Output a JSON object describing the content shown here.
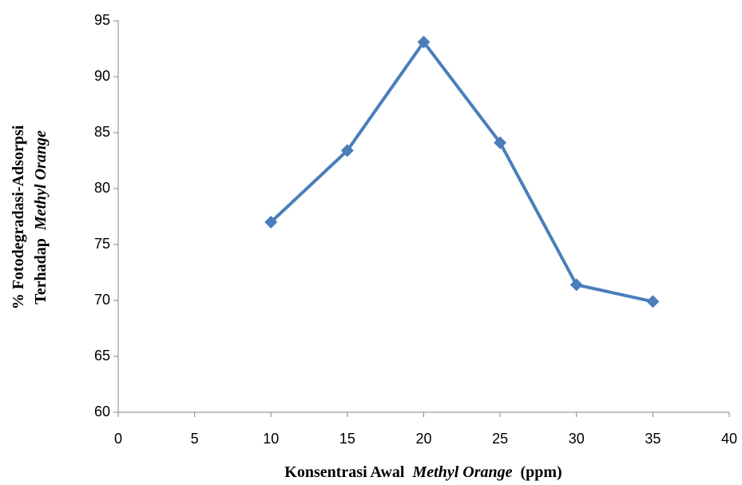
{
  "chart_data": {
    "type": "line",
    "x_label": [
      "Konsentrasi Awal",
      "Methyl Orange",
      "(ppm)"
    ],
    "y_label": [
      [
        "% Fotodegradasi-Adsorpsi"
      ],
      [
        "Terhadap",
        "Methyl Orange"
      ]
    ],
    "x": [
      10,
      15,
      20,
      25,
      30,
      35
    ],
    "series": [
      {
        "color": "#4a7ebb",
        "values": [
          77.0,
          83.4,
          93.1,
          84.1,
          71.4,
          69.9
        ]
      }
    ],
    "xlim": [
      0,
      40
    ],
    "xticks": [
      0,
      5,
      10,
      15,
      20,
      25,
      30,
      35,
      40
    ],
    "ylim": [
      60,
      95
    ],
    "yticks": [
      60,
      65,
      70,
      75,
      80,
      85,
      90,
      95
    ],
    "grid": false
  }
}
